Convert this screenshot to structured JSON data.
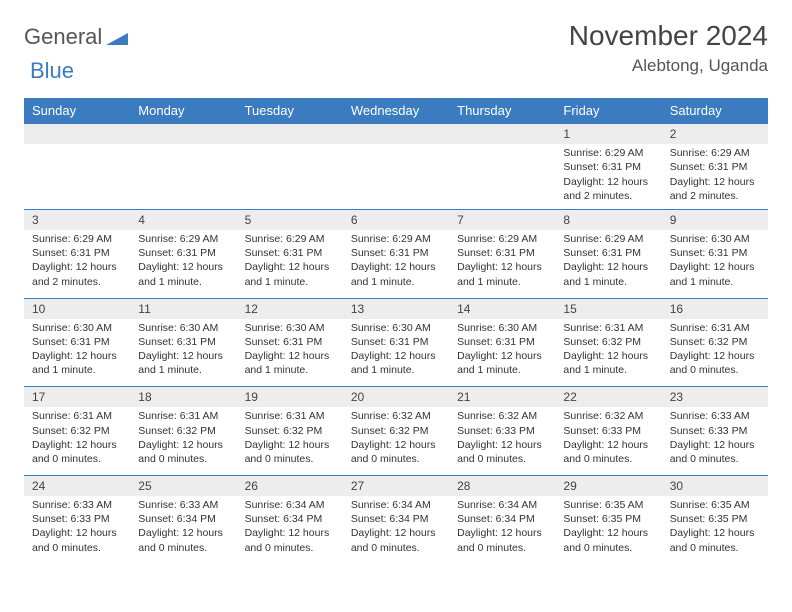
{
  "brand": {
    "part1": "General",
    "part2": "Blue"
  },
  "title": "November 2024",
  "location": "Alebtong, Uganda",
  "colors": {
    "accent": "#3b7bbf",
    "grey": "#ededed",
    "text": "#333"
  },
  "dayHeaders": [
    "Sunday",
    "Monday",
    "Tuesday",
    "Wednesday",
    "Thursday",
    "Friday",
    "Saturday"
  ],
  "weeks": [
    {
      "nums": [
        "",
        "",
        "",
        "",
        "",
        "1",
        "2"
      ],
      "cells": [
        null,
        null,
        null,
        null,
        null,
        {
          "sunrise": "Sunrise: 6:29 AM",
          "sunset": "Sunset: 6:31 PM",
          "day1": "Daylight: 12 hours",
          "day2": "and 2 minutes."
        },
        {
          "sunrise": "Sunrise: 6:29 AM",
          "sunset": "Sunset: 6:31 PM",
          "day1": "Daylight: 12 hours",
          "day2": "and 2 minutes."
        }
      ]
    },
    {
      "nums": [
        "3",
        "4",
        "5",
        "6",
        "7",
        "8",
        "9"
      ],
      "cells": [
        {
          "sunrise": "Sunrise: 6:29 AM",
          "sunset": "Sunset: 6:31 PM",
          "day1": "Daylight: 12 hours",
          "day2": "and 2 minutes."
        },
        {
          "sunrise": "Sunrise: 6:29 AM",
          "sunset": "Sunset: 6:31 PM",
          "day1": "Daylight: 12 hours",
          "day2": "and 1 minute."
        },
        {
          "sunrise": "Sunrise: 6:29 AM",
          "sunset": "Sunset: 6:31 PM",
          "day1": "Daylight: 12 hours",
          "day2": "and 1 minute."
        },
        {
          "sunrise": "Sunrise: 6:29 AM",
          "sunset": "Sunset: 6:31 PM",
          "day1": "Daylight: 12 hours",
          "day2": "and 1 minute."
        },
        {
          "sunrise": "Sunrise: 6:29 AM",
          "sunset": "Sunset: 6:31 PM",
          "day1": "Daylight: 12 hours",
          "day2": "and 1 minute."
        },
        {
          "sunrise": "Sunrise: 6:29 AM",
          "sunset": "Sunset: 6:31 PM",
          "day1": "Daylight: 12 hours",
          "day2": "and 1 minute."
        },
        {
          "sunrise": "Sunrise: 6:30 AM",
          "sunset": "Sunset: 6:31 PM",
          "day1": "Daylight: 12 hours",
          "day2": "and 1 minute."
        }
      ]
    },
    {
      "nums": [
        "10",
        "11",
        "12",
        "13",
        "14",
        "15",
        "16"
      ],
      "cells": [
        {
          "sunrise": "Sunrise: 6:30 AM",
          "sunset": "Sunset: 6:31 PM",
          "day1": "Daylight: 12 hours",
          "day2": "and 1 minute."
        },
        {
          "sunrise": "Sunrise: 6:30 AM",
          "sunset": "Sunset: 6:31 PM",
          "day1": "Daylight: 12 hours",
          "day2": "and 1 minute."
        },
        {
          "sunrise": "Sunrise: 6:30 AM",
          "sunset": "Sunset: 6:31 PM",
          "day1": "Daylight: 12 hours",
          "day2": "and 1 minute."
        },
        {
          "sunrise": "Sunrise: 6:30 AM",
          "sunset": "Sunset: 6:31 PM",
          "day1": "Daylight: 12 hours",
          "day2": "and 1 minute."
        },
        {
          "sunrise": "Sunrise: 6:30 AM",
          "sunset": "Sunset: 6:31 PM",
          "day1": "Daylight: 12 hours",
          "day2": "and 1 minute."
        },
        {
          "sunrise": "Sunrise: 6:31 AM",
          "sunset": "Sunset: 6:32 PM",
          "day1": "Daylight: 12 hours",
          "day2": "and 1 minute."
        },
        {
          "sunrise": "Sunrise: 6:31 AM",
          "sunset": "Sunset: 6:32 PM",
          "day1": "Daylight: 12 hours",
          "day2": "and 0 minutes."
        }
      ]
    },
    {
      "nums": [
        "17",
        "18",
        "19",
        "20",
        "21",
        "22",
        "23"
      ],
      "cells": [
        {
          "sunrise": "Sunrise: 6:31 AM",
          "sunset": "Sunset: 6:32 PM",
          "day1": "Daylight: 12 hours",
          "day2": "and 0 minutes."
        },
        {
          "sunrise": "Sunrise: 6:31 AM",
          "sunset": "Sunset: 6:32 PM",
          "day1": "Daylight: 12 hours",
          "day2": "and 0 minutes."
        },
        {
          "sunrise": "Sunrise: 6:31 AM",
          "sunset": "Sunset: 6:32 PM",
          "day1": "Daylight: 12 hours",
          "day2": "and 0 minutes."
        },
        {
          "sunrise": "Sunrise: 6:32 AM",
          "sunset": "Sunset: 6:32 PM",
          "day1": "Daylight: 12 hours",
          "day2": "and 0 minutes."
        },
        {
          "sunrise": "Sunrise: 6:32 AM",
          "sunset": "Sunset: 6:33 PM",
          "day1": "Daylight: 12 hours",
          "day2": "and 0 minutes."
        },
        {
          "sunrise": "Sunrise: 6:32 AM",
          "sunset": "Sunset: 6:33 PM",
          "day1": "Daylight: 12 hours",
          "day2": "and 0 minutes."
        },
        {
          "sunrise": "Sunrise: 6:33 AM",
          "sunset": "Sunset: 6:33 PM",
          "day1": "Daylight: 12 hours",
          "day2": "and 0 minutes."
        }
      ]
    },
    {
      "nums": [
        "24",
        "25",
        "26",
        "27",
        "28",
        "29",
        "30"
      ],
      "cells": [
        {
          "sunrise": "Sunrise: 6:33 AM",
          "sunset": "Sunset: 6:33 PM",
          "day1": "Daylight: 12 hours",
          "day2": "and 0 minutes."
        },
        {
          "sunrise": "Sunrise: 6:33 AM",
          "sunset": "Sunset: 6:34 PM",
          "day1": "Daylight: 12 hours",
          "day2": "and 0 minutes."
        },
        {
          "sunrise": "Sunrise: 6:34 AM",
          "sunset": "Sunset: 6:34 PM",
          "day1": "Daylight: 12 hours",
          "day2": "and 0 minutes."
        },
        {
          "sunrise": "Sunrise: 6:34 AM",
          "sunset": "Sunset: 6:34 PM",
          "day1": "Daylight: 12 hours",
          "day2": "and 0 minutes."
        },
        {
          "sunrise": "Sunrise: 6:34 AM",
          "sunset": "Sunset: 6:34 PM",
          "day1": "Daylight: 12 hours",
          "day2": "and 0 minutes."
        },
        {
          "sunrise": "Sunrise: 6:35 AM",
          "sunset": "Sunset: 6:35 PM",
          "day1": "Daylight: 12 hours",
          "day2": "and 0 minutes."
        },
        {
          "sunrise": "Sunrise: 6:35 AM",
          "sunset": "Sunset: 6:35 PM",
          "day1": "Daylight: 12 hours",
          "day2": "and 0 minutes."
        }
      ]
    }
  ]
}
